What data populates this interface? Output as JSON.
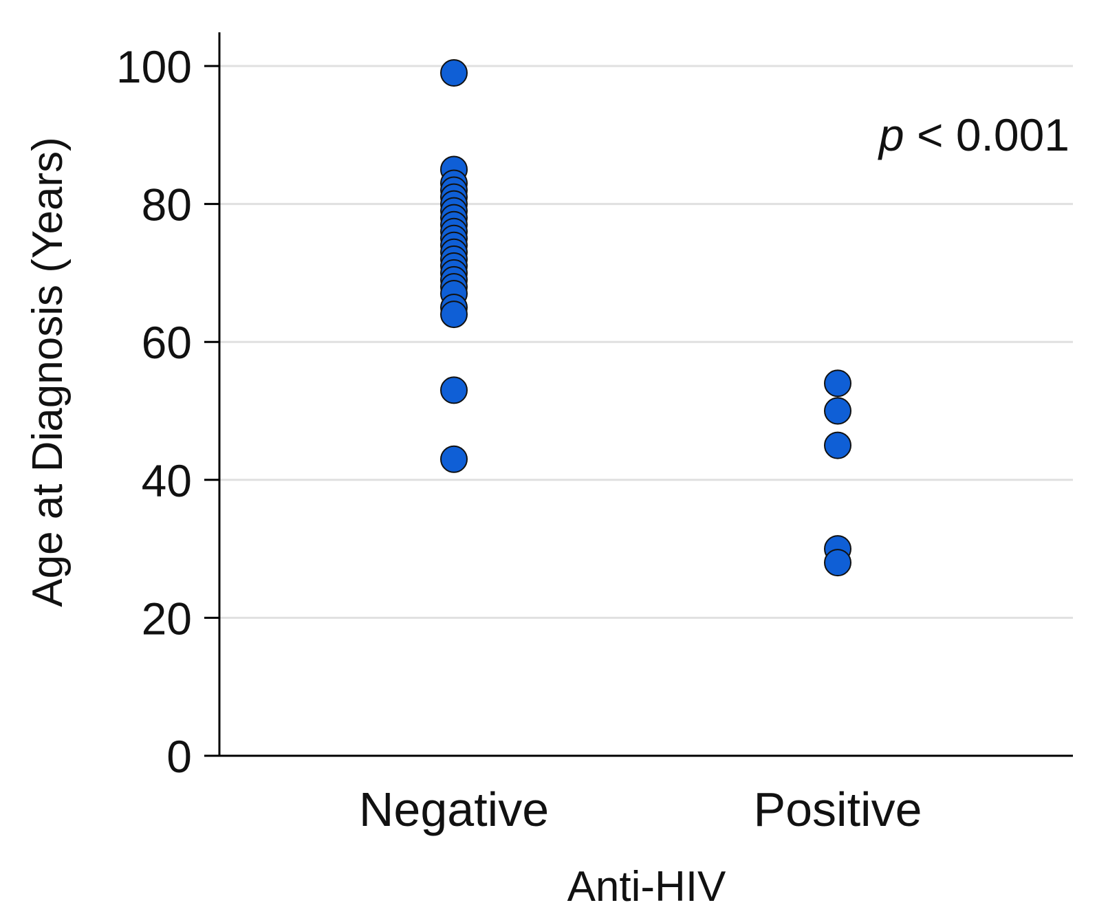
{
  "chart_data": {
    "type": "scatter",
    "title": "",
    "xlabel": "Anti-HIV",
    "ylabel": "Age at Diagnosis (Years)",
    "ylim": [
      0,
      100
    ],
    "yticks": [
      0,
      20,
      40,
      60,
      80,
      100
    ],
    "grid": true,
    "categories": [
      "Negative",
      "Positive"
    ],
    "series": [
      {
        "name": "Negative",
        "category": "Negative",
        "color": "#0f5fd6",
        "values": [
          99,
          85,
          83,
          82,
          81,
          80,
          79,
          78,
          77,
          76,
          75,
          74,
          73,
          72,
          71,
          70,
          69,
          68,
          67,
          65,
          64,
          53,
          43
        ]
      },
      {
        "name": "Positive",
        "category": "Positive",
        "color": "#0f5fd6",
        "values": [
          54,
          50,
          45,
          30,
          28
        ]
      }
    ],
    "annotation": {
      "prefix": "p",
      "text": " < 0.001"
    }
  }
}
